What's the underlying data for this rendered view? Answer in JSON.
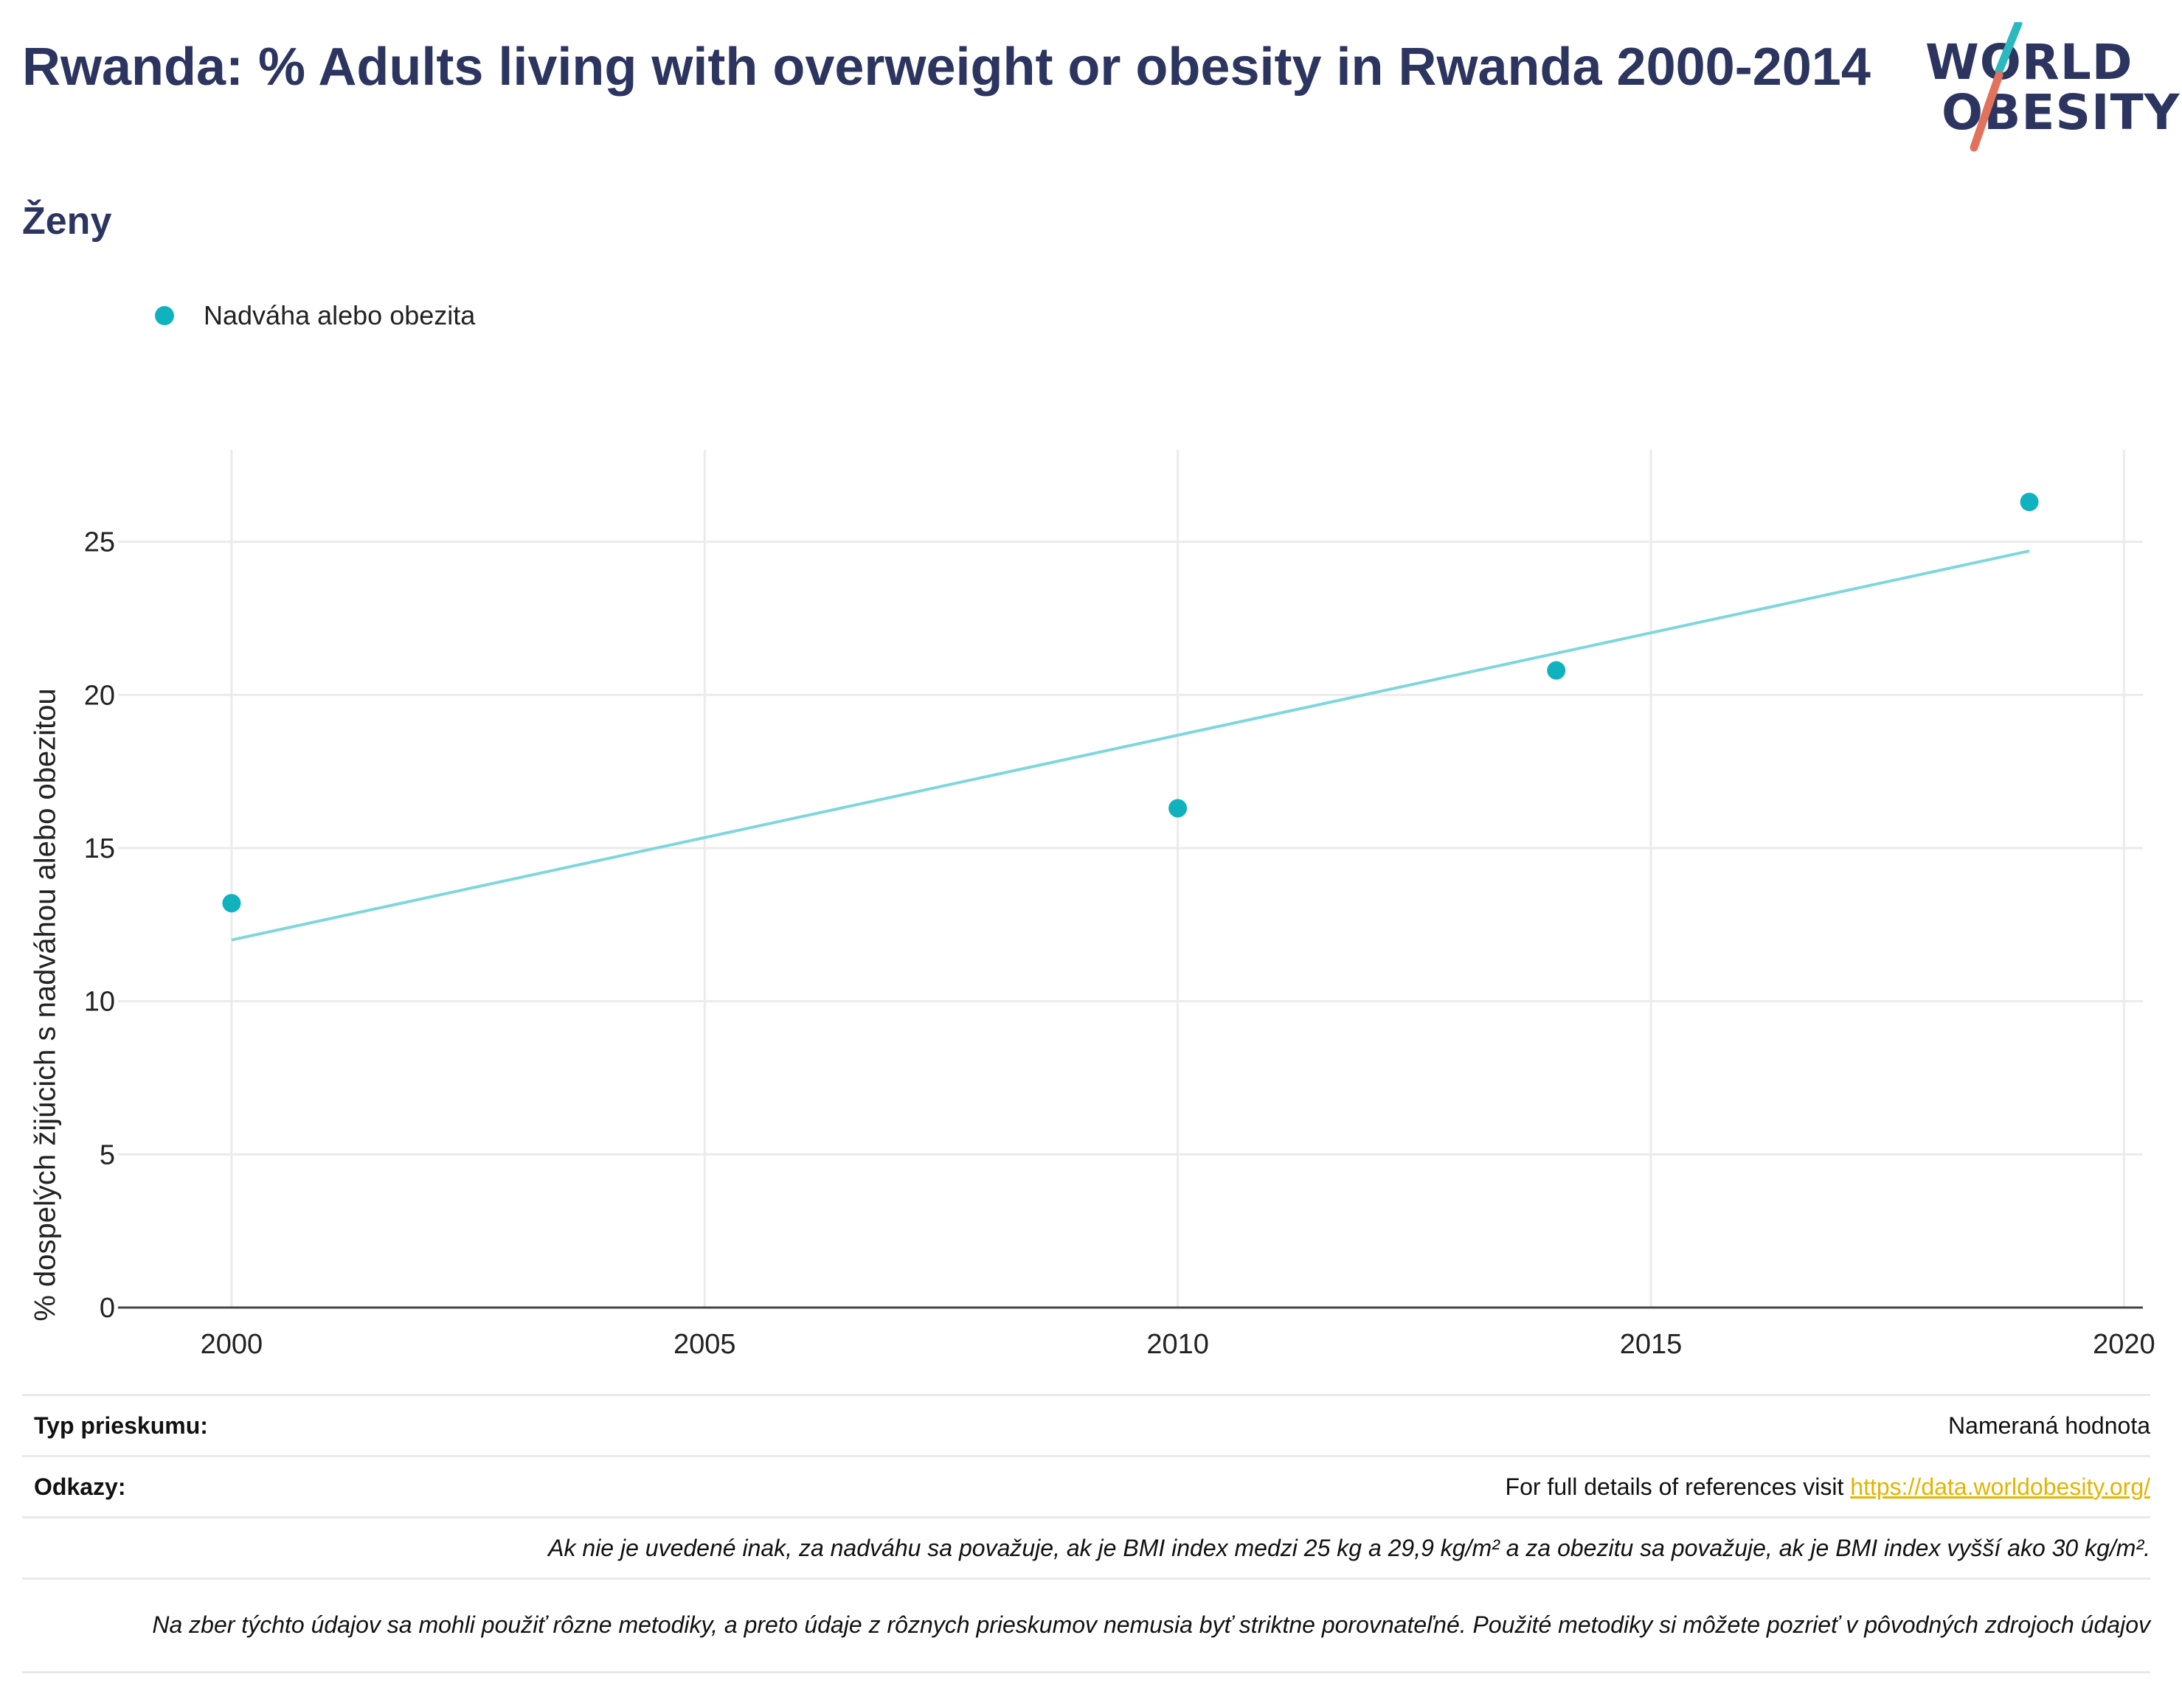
{
  "header": {
    "title": "Rwanda: % Adults living with overweight or obesity in Rwanda 2000-2014",
    "subtitle": "Ženy"
  },
  "logo": {
    "line1": "WORLD",
    "line2": "OBESITY",
    "slash_colors": [
      "#2bb8bf",
      "#e2725b"
    ]
  },
  "colors": {
    "title": "#2c3560",
    "series": "#10b3bd",
    "trend": "#7fd6dc",
    "link": "#e4b400",
    "grid": "#ebebeb"
  },
  "chart_data": {
    "type": "scatter",
    "title": "Rwanda: % Adults living with overweight or obesity in Rwanda 2000-2014",
    "subtitle": "Ženy",
    "ylabel": "% dospelých žijúcich s nadváhou alebo obezitou",
    "xlabel": "",
    "xlim": [
      1998.8,
      2020.2
    ],
    "ylim": [
      0,
      28
    ],
    "xticks": [
      2000,
      2005,
      2010,
      2015,
      2020
    ],
    "yticks": [
      0,
      5,
      10,
      15,
      20,
      25
    ],
    "grid": true,
    "legend_position": "top-left",
    "series": [
      {
        "name": "Nadváha alebo obezita",
        "x": [
          2000,
          2010,
          2014,
          2019
        ],
        "y": [
          13.2,
          16.3,
          20.8,
          26.3
        ]
      }
    ],
    "trendline": {
      "x": [
        2000,
        2019
      ],
      "y": [
        12.0,
        24.7
      ]
    }
  },
  "info": {
    "survey_type_label": "Typ prieskumu:",
    "survey_type_value": "Nameraná hodnota",
    "references_label": "Odkazy:",
    "references_text": "For full details of references visit ",
    "references_link": "https://data.worldobesity.org/",
    "note1": "Ak nie je uvedené inak, za nadváhu sa považuje, ak je BMI index medzi 25 kg a 29,9 kg/m² a za obezitu sa považuje, ak je BMI index vyšší ako 30 kg/m².",
    "note2": "Na zber týchto údajov sa mohli použiť rôzne metodiky, a preto údaje z rôznych prieskumov nemusia byť striktne porovnateľné. Použité metodiky si môžete pozrieť v pôvodných zdrojoch údajov"
  }
}
